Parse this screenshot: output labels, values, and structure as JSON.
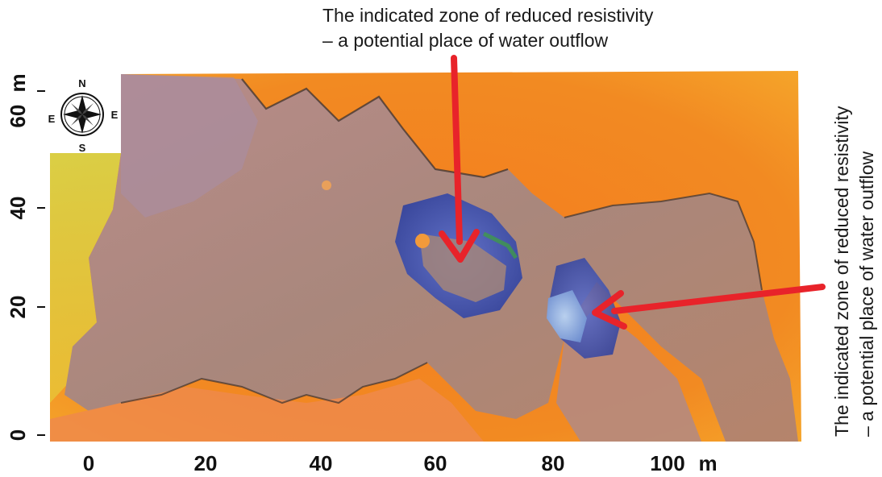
{
  "callouts": {
    "top": {
      "line1": "The indicated zone of reduced resistivity",
      "line2": "– a potential place of water outflow"
    },
    "right": {
      "line1": "The indicated zone of reduced resistivity",
      "line2": "– a potential place of water outflow"
    }
  },
  "x_axis": {
    "ticks": [
      "0",
      "20",
      "40",
      "60",
      "80",
      "100"
    ],
    "unit": "m"
  },
  "y_axis": {
    "ticks": [
      "0",
      "20",
      "40"
    ],
    "top_tick": "60",
    "unit": "m"
  },
  "compass": {
    "north": "N",
    "south": "S",
    "east": "E",
    "west": "E"
  },
  "colors": {
    "arrow": "#e8232a",
    "high_resistivity": "#f27a1f",
    "medium_resistivity": "#a48a80",
    "low_resistivity": "#3f57b8",
    "very_low_resistivity": "#9ab6de"
  },
  "icons": {
    "compass_rose": "compass-rose-icon"
  }
}
